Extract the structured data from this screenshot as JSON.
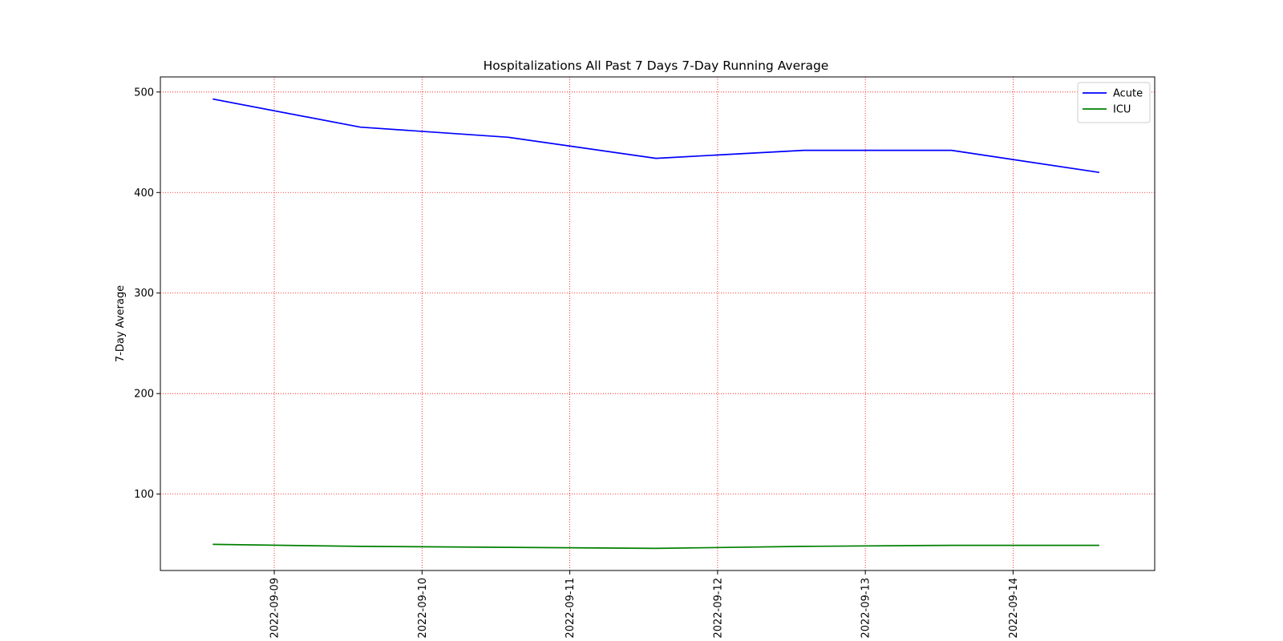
{
  "chart_data": {
    "type": "line",
    "title": "Hospitalizations All Past 7 Days 7-Day Running Average",
    "xlabel": "",
    "ylabel": "7-Day Average",
    "x": [
      "2022-09-08 14:00",
      "2022-09-09 14:00",
      "2022-09-10 14:00",
      "2022-09-11 14:00",
      "2022-09-12 14:00",
      "2022-09-13 14:00",
      "2022-09-14 14:00"
    ],
    "xticks": [
      "2022-09-09",
      "2022-09-10",
      "2022-09-11",
      "2022-09-12",
      "2022-09-13",
      "2022-09-14"
    ],
    "xlim": [
      "2022-09-08 05:30",
      "2022-09-14 23:00"
    ],
    "ylim": [
      24,
      515
    ],
    "yticks": [
      100,
      200,
      300,
      400,
      500
    ],
    "grid": true,
    "grid_color": "#ff0000",
    "legend_position": "top-right",
    "series": [
      {
        "name": "Acute",
        "color": "#0000ff",
        "values": [
          493,
          465,
          455,
          434,
          442,
          442,
          420
        ]
      },
      {
        "name": "ICU",
        "color": "#008000",
        "values": [
          50,
          48,
          47,
          46,
          48,
          49,
          49
        ]
      }
    ]
  }
}
